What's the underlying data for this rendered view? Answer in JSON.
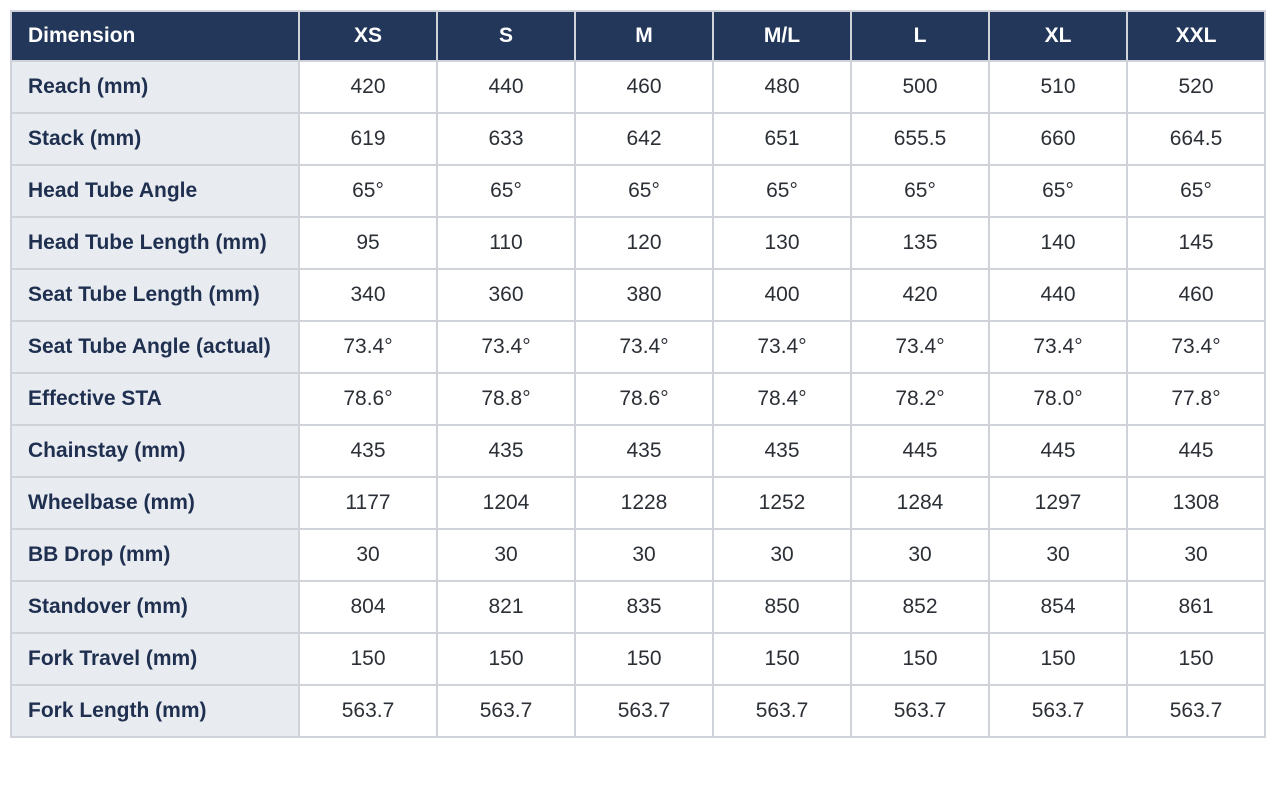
{
  "table": {
    "header": [
      "Dimension",
      "XS",
      "S",
      "M",
      "M/L",
      "L",
      "XL",
      "XXL"
    ],
    "rows": [
      [
        "Reach (mm)",
        "420",
        "440",
        "460",
        "480",
        "500",
        "510",
        "520"
      ],
      [
        "Stack (mm)",
        "619",
        "633",
        "642",
        "651",
        "655.5",
        "660",
        "664.5"
      ],
      [
        "Head Tube Angle",
        "65°",
        "65°",
        "65°",
        "65°",
        "65°",
        "65°",
        "65°"
      ],
      [
        "Head Tube Length (mm)",
        "95",
        "110",
        "120",
        "130",
        "135",
        "140",
        "145"
      ],
      [
        "Seat Tube Length (mm)",
        "340",
        "360",
        "380",
        "400",
        "420",
        "440",
        "460"
      ],
      [
        "Seat Tube Angle (actual)",
        "73.4°",
        "73.4°",
        "73.4°",
        "73.4°",
        "73.4°",
        "73.4°",
        "73.4°"
      ],
      [
        "Effective STA",
        "78.6°",
        "78.8°",
        "78.6°",
        "78.4°",
        "78.2°",
        "78.0°",
        "77.8°"
      ],
      [
        "Chainstay (mm)",
        "435",
        "435",
        "435",
        "435",
        "445",
        "445",
        "445"
      ],
      [
        "Wheelbase (mm)",
        "1177",
        "1204",
        "1228",
        "1252",
        "1284",
        "1297",
        "1308"
      ],
      [
        "BB Drop (mm)",
        "30",
        "30",
        "30",
        "30",
        "30",
        "30",
        "30"
      ],
      [
        "Standover (mm)",
        "804",
        "821",
        "835",
        "850",
        "852",
        "854",
        "861"
      ],
      [
        "Fork Travel (mm)",
        "150",
        "150",
        "150",
        "150",
        "150",
        "150",
        "150"
      ],
      [
        "Fork Length (mm)",
        "563.7",
        "563.7",
        "563.7",
        "563.7",
        "563.7",
        "563.7",
        "563.7"
      ]
    ]
  }
}
